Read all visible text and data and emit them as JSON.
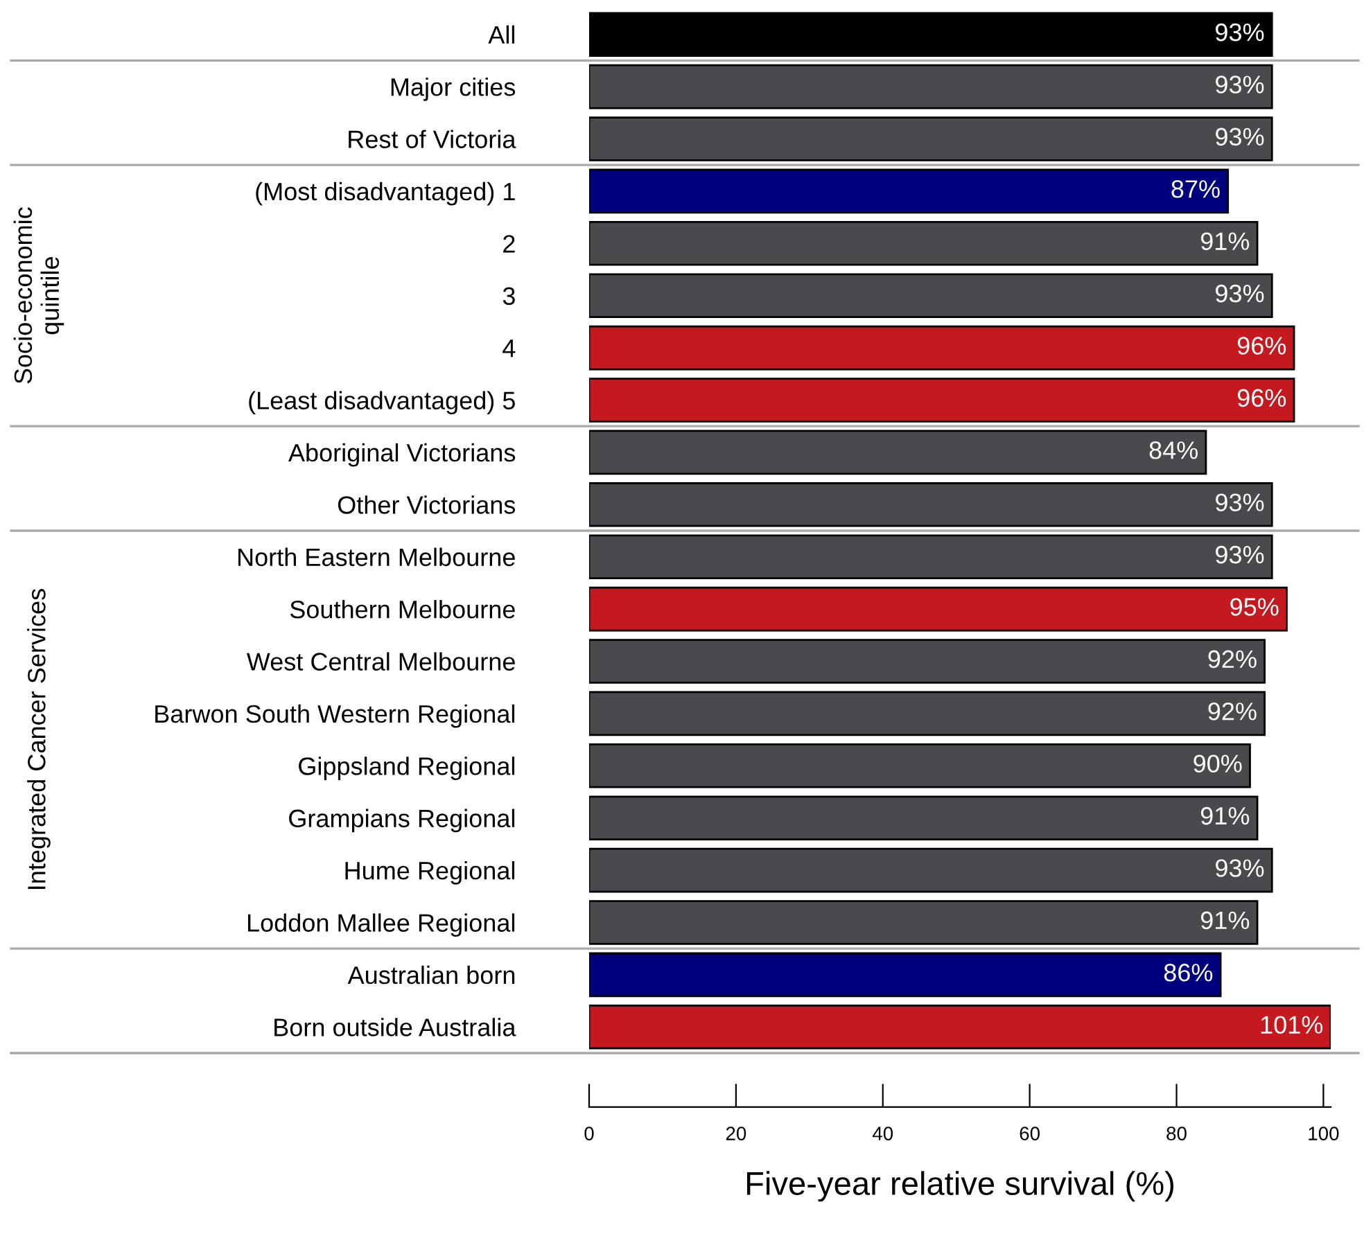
{
  "chart_data": {
    "type": "bar",
    "orientation": "horizontal",
    "xlabel": "Five-year relative survival (%)",
    "categories": [
      "All",
      "Major cities",
      "Rest of Victoria",
      "(Most disadvantaged) 1",
      "2",
      "3",
      "4",
      "(Least disadvantaged) 5",
      "Aboriginal Victorians",
      "Other Victorians",
      "North Eastern Melbourne",
      "Southern Melbourne",
      "West Central Melbourne",
      "Barwon South Western Regional",
      "Gippsland Regional",
      "Grampians Regional",
      "Hume Regional",
      "Loddon Mallee Regional",
      "Australian born",
      "Born outside Australia"
    ],
    "values": [
      93,
      93,
      93,
      87,
      91,
      93,
      96,
      96,
      84,
      93,
      93,
      95,
      92,
      92,
      90,
      91,
      93,
      91,
      86,
      101
    ],
    "value_labels": [
      "93%",
      "93%",
      "93%",
      "87%",
      "91%",
      "93%",
      "96%",
      "96%",
      "84%",
      "93%",
      "93%",
      "95%",
      "92%",
      "92%",
      "90%",
      "91%",
      "93%",
      "91%",
      "86%",
      "101%"
    ],
    "colors": [
      "#000000",
      "#4a4a4e",
      "#4a4a4e",
      "#00007f",
      "#4a4a4e",
      "#4a4a4e",
      "#c4191f",
      "#c4191f",
      "#4a4a4e",
      "#4a4a4e",
      "#4a4a4e",
      "#c4191f",
      "#4a4a4e",
      "#4a4a4e",
      "#4a4a4e",
      "#4a4a4e",
      "#4a4a4e",
      "#4a4a4e",
      "#00007f",
      "#c4191f"
    ],
    "xlim": [
      0,
      101
    ],
    "xticks": [
      0,
      20,
      40,
      60,
      80,
      100
    ],
    "grid": false,
    "legend": false,
    "annotations": [
      "Socio-economic\nquintile",
      "Integrated Cancer Services"
    ]
  }
}
